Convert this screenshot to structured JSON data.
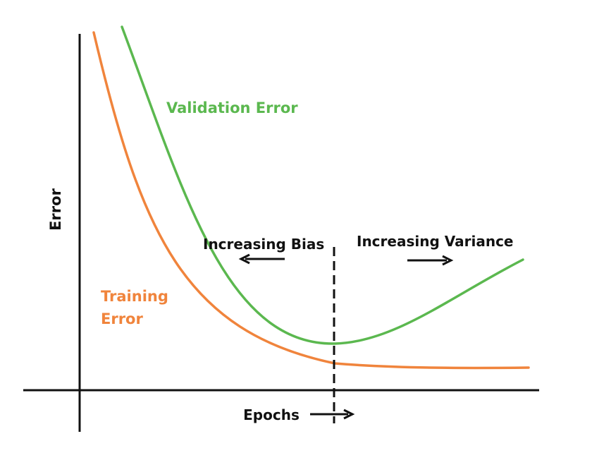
{
  "labels": {
    "y_axis": "Error",
    "x_axis": "Epochs",
    "validation": "Validation Error",
    "training_line1": "Training",
    "training_line2": "Error",
    "bias": "Increasing Bias",
    "variance": "Increasing Variance"
  },
  "colors": {
    "training": "#F0843C",
    "validation": "#5BB84F",
    "axis": "#111111",
    "text": "#111111"
  }
}
